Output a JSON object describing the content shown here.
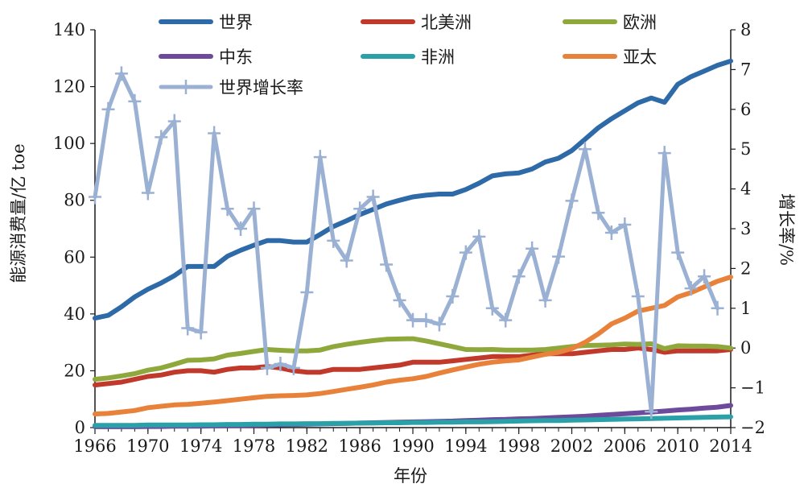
{
  "chart_data": {
    "type": "line",
    "xlabel": "年份",
    "ylabel_left": "能源消费量/亿 toe",
    "ylabel_right": "增长率/%",
    "x": [
      1966,
      1967,
      1968,
      1969,
      1970,
      1971,
      1972,
      1973,
      1974,
      1975,
      1976,
      1977,
      1978,
      1979,
      1980,
      1981,
      1982,
      1983,
      1984,
      1985,
      1986,
      1987,
      1988,
      1989,
      1990,
      1991,
      1992,
      1993,
      1994,
      1995,
      1996,
      1997,
      1998,
      1999,
      2000,
      2001,
      2002,
      2003,
      2004,
      2005,
      2006,
      2007,
      2008,
      2009,
      2010,
      2011,
      2012,
      2013,
      2014
    ],
    "x_ticks": [
      "1966",
      "1970",
      "1974",
      "1978",
      "1982",
      "1986",
      "1990",
      "1994",
      "1998",
      "2002",
      "2006",
      "2010",
      "2014"
    ],
    "y_left_ticks": [
      "0",
      "20",
      "40",
      "60",
      "80",
      "100",
      "120",
      "140"
    ],
    "y_right_ticks": [
      "−2",
      "−1",
      "0",
      "1",
      "2",
      "3",
      "4",
      "5",
      "6",
      "7",
      "8"
    ],
    "ylim_left": [
      0,
      140
    ],
    "ylim_right": [
      -2,
      8
    ],
    "xlim": [
      1966,
      2014
    ],
    "legend_position": "top",
    "series": [
      {
        "name": "世界",
        "axis": "left",
        "color": "#2e6aa8",
        "marker": false,
        "values": [
          38.5,
          39.5,
          42.5,
          46,
          48.7,
          50.9,
          53.5,
          56.7,
          56.7,
          56.7,
          60.3,
          62.4,
          64.2,
          65.8,
          65.8,
          65.3,
          65.3,
          68,
          70.8,
          72.8,
          75,
          76.8,
          78.7,
          80,
          81.2,
          81.8,
          82.2,
          82.2,
          83.8,
          86,
          88.6,
          89.3,
          89.6,
          91,
          93.5,
          94.8,
          97.5,
          101.5,
          105.5,
          108.7,
          111.5,
          114.3,
          116,
          114.5,
          120.8,
          123.5,
          125.5,
          127.5,
          129
        ]
      },
      {
        "name": "北美洲",
        "axis": "left",
        "color": "#c0392b",
        "marker": false,
        "values": [
          15,
          15.5,
          16,
          17,
          18,
          18.5,
          19.5,
          20,
          20,
          19.5,
          20.5,
          21,
          21,
          21.5,
          21,
          20,
          19.5,
          19.5,
          20.5,
          20.5,
          20.5,
          21,
          21.5,
          22,
          23,
          23,
          23,
          23.5,
          24,
          24.5,
          25,
          25,
          25,
          25.5,
          26,
          26,
          26,
          26.5,
          27,
          27.5,
          27.5,
          28,
          27.5,
          26.5,
          27,
          27,
          27,
          27,
          27.5
        ]
      },
      {
        "name": "欧洲",
        "axis": "left",
        "color": "#8fa83c",
        "marker": false,
        "values": [
          17,
          17.5,
          18.2,
          19,
          20.2,
          21,
          22.3,
          23.7,
          23.8,
          24.2,
          25.5,
          26.1,
          26.8,
          27.5,
          27.2,
          27,
          27,
          27.3,
          28.5,
          29.3,
          30,
          30.6,
          31.1,
          31.2,
          31.3,
          30.5,
          29.5,
          28.5,
          27.5,
          27.4,
          27.5,
          27.3,
          27.3,
          27.3,
          27.5,
          28,
          28.5,
          28.9,
          29,
          29.1,
          29.4,
          29.3,
          29.5,
          27.8,
          28.8,
          28.7,
          28.7,
          28.5,
          28
        ]
      },
      {
        "name": "中东",
        "axis": "left",
        "color": "#6d4a9c",
        "marker": false,
        "values": [
          0.3,
          0.3,
          0.3,
          0.3,
          0.4,
          0.4,
          0.5,
          0.5,
          0.5,
          0.6,
          0.7,
          0.7,
          0.8,
          0.9,
          1,
          1.1,
          1.2,
          1.3,
          1.4,
          1.5,
          1.6,
          1.7,
          1.8,
          1.9,
          2,
          2.1,
          2.2,
          2.3,
          2.5,
          2.6,
          2.8,
          2.9,
          3.1,
          3.2,
          3.4,
          3.6,
          3.8,
          4,
          4.3,
          4.6,
          4.9,
          5.2,
          5.5,
          5.8,
          6.2,
          6.5,
          6.9,
          7.2,
          7.8
        ]
      },
      {
        "name": "非洲",
        "axis": "left",
        "color": "#2aa0a8",
        "marker": false,
        "values": [
          0.8,
          0.8,
          0.8,
          0.8,
          0.9,
          0.9,
          0.9,
          0.9,
          1,
          1,
          1.1,
          1.1,
          1.2,
          1.2,
          1.3,
          1.3,
          1.4,
          1.4,
          1.5,
          1.5,
          1.6,
          1.6,
          1.7,
          1.7,
          1.8,
          1.8,
          1.9,
          1.9,
          2,
          2,
          2.1,
          2.2,
          2.3,
          2.4,
          2.5,
          2.5,
          2.6,
          2.7,
          2.8,
          2.9,
          3,
          3.1,
          3.2,
          3.3,
          3.4,
          3.5,
          3.6,
          3.7,
          3.8
        ]
      },
      {
        "name": "亚太",
        "axis": "left",
        "color": "#e8823a",
        "marker": false,
        "values": [
          4.8,
          5,
          5.5,
          6,
          7,
          7.5,
          8,
          8.2,
          8.6,
          9,
          9.5,
          10,
          10.5,
          11,
          11.2,
          11.3,
          11.5,
          12,
          12.7,
          13.5,
          14.2,
          15,
          16,
          16.7,
          17.2,
          18,
          19.2,
          20.3,
          21.3,
          22.3,
          23,
          23.5,
          23.8,
          24.8,
          25.8,
          26.5,
          27.8,
          30,
          33,
          36.5,
          38.5,
          41,
          42,
          43,
          46,
          47.5,
          49.5,
          51.5,
          53
        ]
      },
      {
        "name": "世界增长率",
        "axis": "right",
        "color": "#9bb1d4",
        "marker": true,
        "values": [
          3.8,
          6,
          6.9,
          6.2,
          3.9,
          5.3,
          5.7,
          0.5,
          0.4,
          5.4,
          3.5,
          3,
          3.5,
          -0.5,
          -0.4,
          -0.5,
          1.4,
          4.8,
          2.7,
          2.2,
          3.5,
          3.8,
          2.1,
          1.2,
          0.7,
          0.7,
          0.6,
          1.3,
          2.4,
          2.8,
          1,
          0.7,
          1.8,
          2.5,
          1.2,
          2.3,
          3.7,
          5,
          3.4,
          2.9,
          3.1,
          1.3,
          -1.6,
          4.9,
          2.4,
          1.5,
          1.8,
          1,
          null
        ]
      }
    ]
  }
}
